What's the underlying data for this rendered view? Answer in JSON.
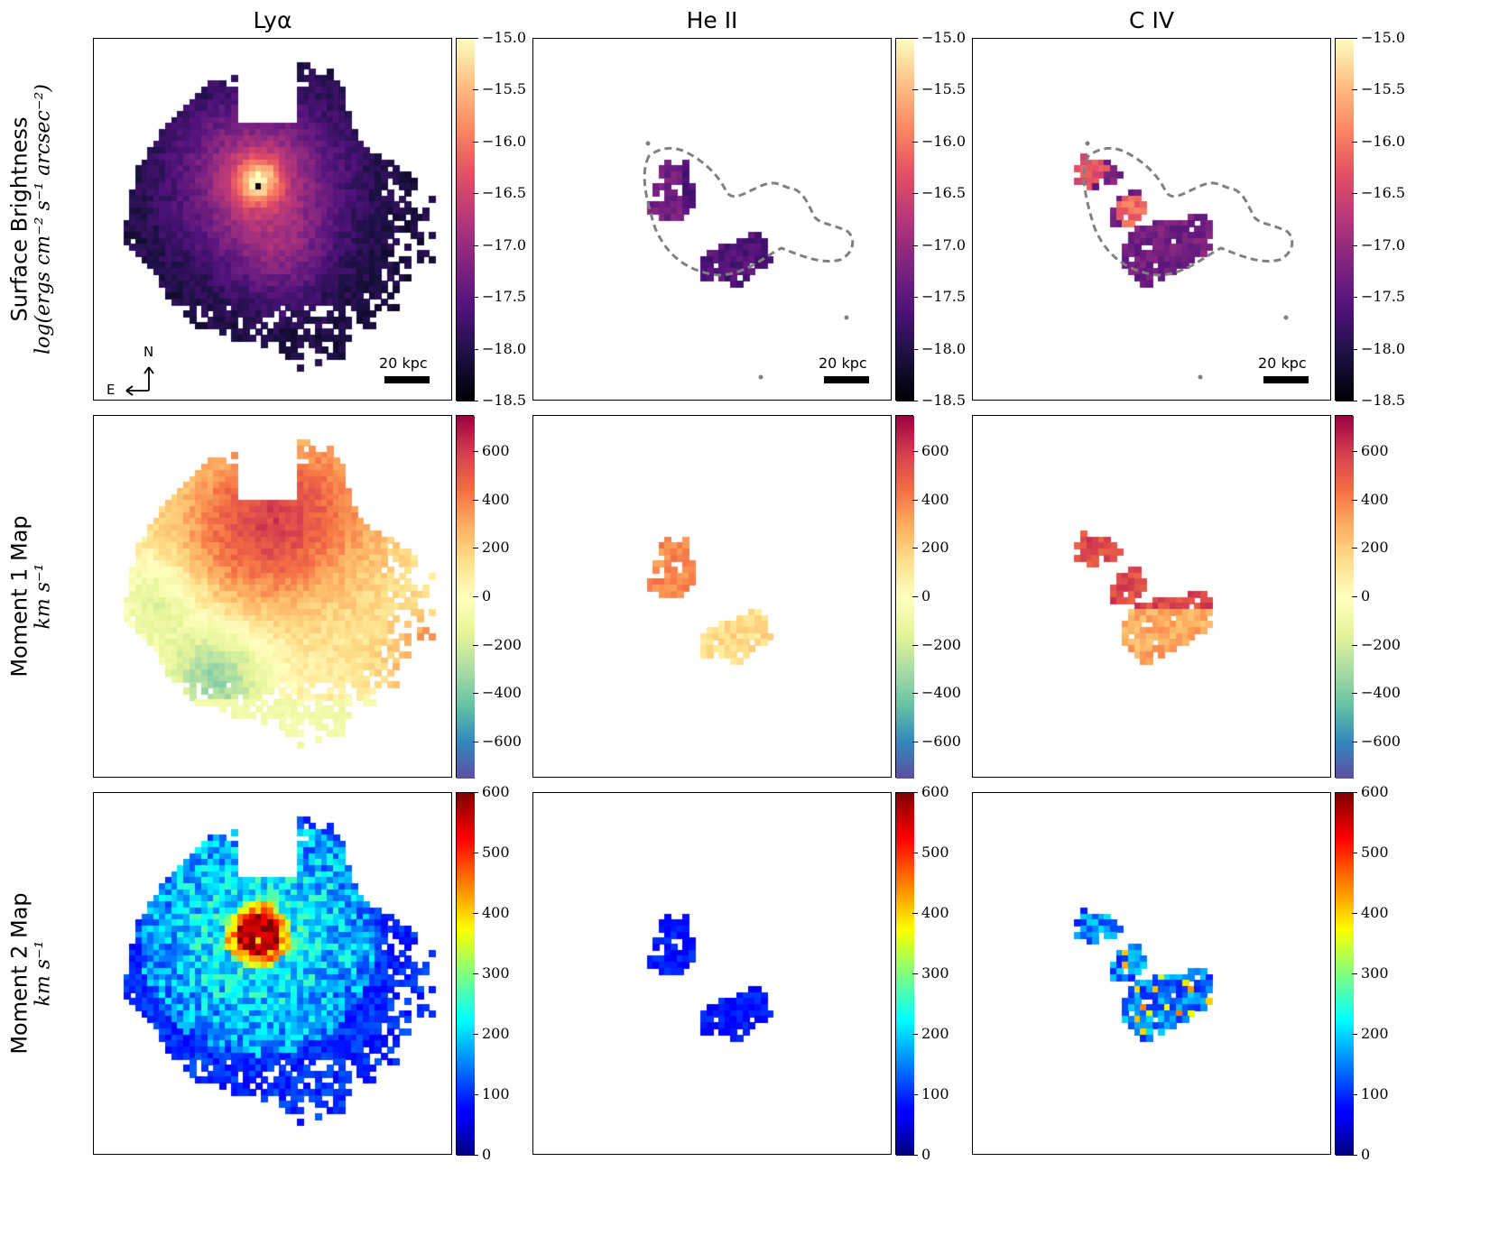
{
  "chart_data": {
    "type": "heatmap",
    "columns": [
      "Lyα",
      "He II",
      "C IV"
    ],
    "rows": [
      {
        "title": "Surface Brightness",
        "unit": "log(ergs cm⁻² s⁻¹ arcsec⁻²)",
        "colormap": "magma",
        "vmin": -18.5,
        "vmax": -15.0,
        "ticks": [
          -15.0,
          -15.5,
          -16.0,
          -16.5,
          -17.0,
          -17.5,
          -18.0,
          -18.5
        ],
        "tick_labels": [
          "−15.0",
          "−15.5",
          "−16.0",
          "−16.5",
          "−17.0",
          "−17.5",
          "−18.0",
          "−18.5"
        ]
      },
      {
        "title": "Moment 1 Map",
        "unit": "km s⁻¹",
        "colormap": "Spectral_r",
        "vmin": -750,
        "vmax": 750,
        "ticks": [
          600,
          400,
          200,
          0,
          -200,
          -400,
          -600
        ],
        "tick_labels": [
          "600",
          "400",
          "200",
          "0",
          "−200",
          "−400",
          "−600"
        ]
      },
      {
        "title": "Moment 2 Map",
        "unit": "km s⁻¹",
        "colormap": "jet",
        "vmin": 0,
        "vmax": 600,
        "ticks": [
          600,
          500,
          400,
          300,
          200,
          100,
          0
        ],
        "tick_labels": [
          "600",
          "500",
          "400",
          "300",
          "200",
          "100",
          "0"
        ]
      }
    ],
    "scalebar_label": "20 kpc",
    "compass": {
      "north": "N",
      "east": "E"
    },
    "features": {
      "lya_peak_surface_brightness": -15.3,
      "lya_moment1_peak": 700,
      "lya_moment2_core": 600
    }
  }
}
